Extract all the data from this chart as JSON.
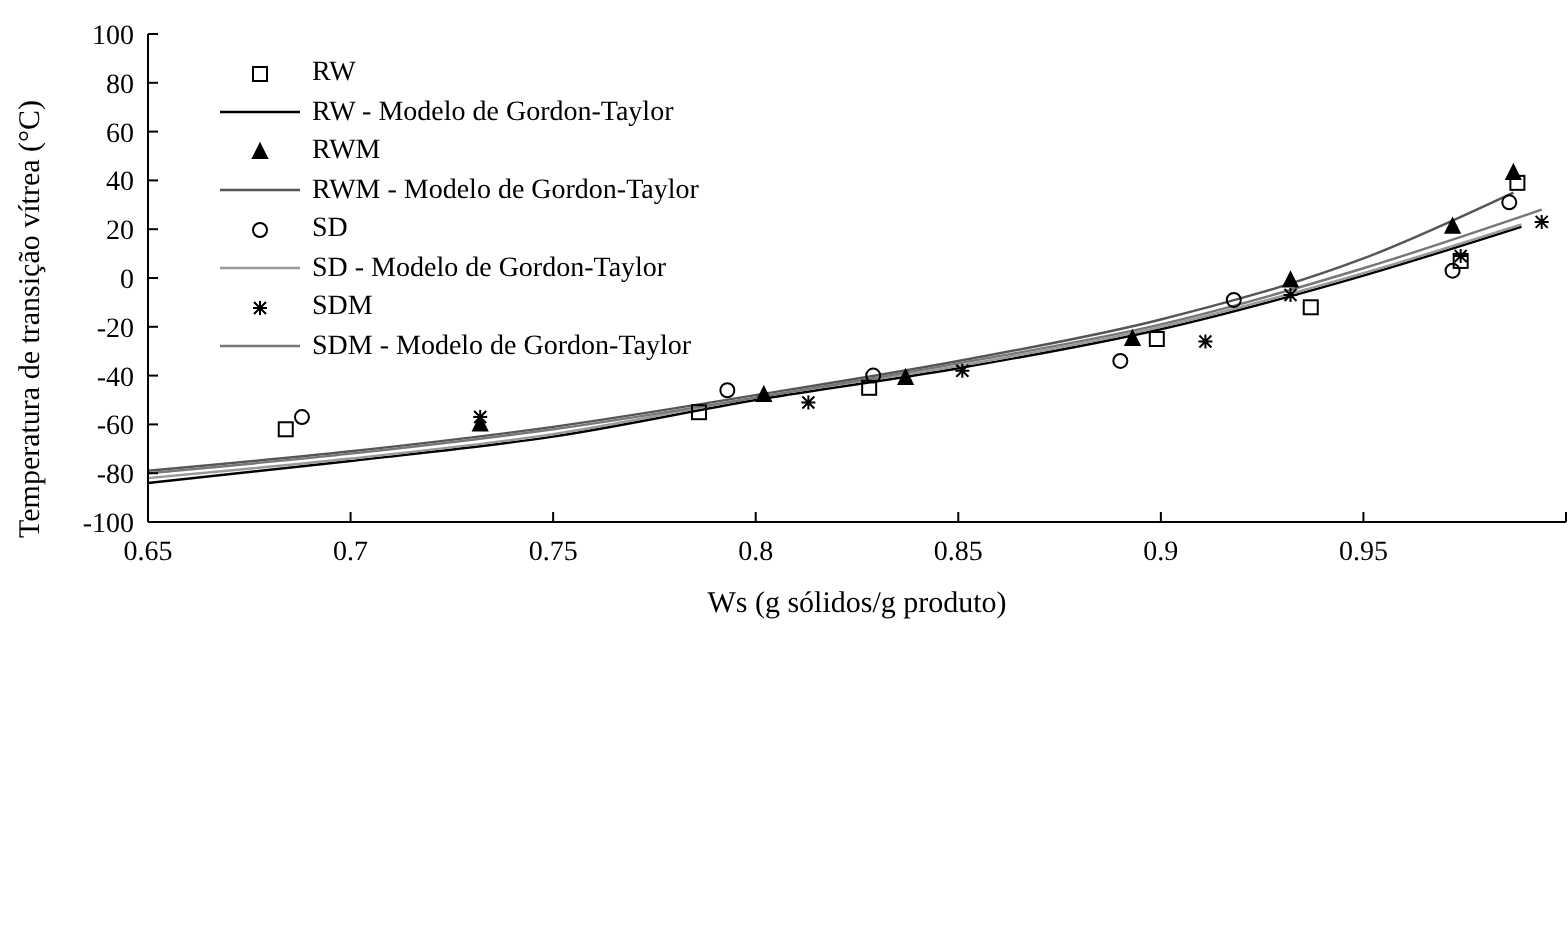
{
  "chart_data": {
    "type": "scatter",
    "xlabel": "Ws (g sólidos/g produto)",
    "ylabel": "Temperatura de transição vítrea (°C)",
    "xlim": [
      0.65,
      1.0
    ],
    "ylim": [
      -100,
      100
    ],
    "xticks": [
      0.65,
      0.7,
      0.75,
      0.8,
      0.85,
      0.9,
      0.95,
      {
        "value": 1.0,
        "label": null
      }
    ],
    "yticks": [
      -100,
      -80,
      -60,
      -40,
      -20,
      0,
      20,
      40,
      60,
      80,
      100
    ],
    "legend": "top left",
    "series": [
      {
        "name": "RW",
        "marker": "square",
        "color": "#000000",
        "x": [
          0.684,
          0.786,
          0.828,
          0.899,
          0.937,
          0.974,
          0.988
        ],
        "values": [
          -62,
          -55,
          -45,
          -25,
          -12,
          7,
          39
        ]
      },
      {
        "name": "RW - Modelo de Gordon-Taylor",
        "type": "line",
        "marker": "none",
        "color": "#000000",
        "x": [
          0.65,
          0.7,
          0.75,
          0.8,
          0.85,
          0.9,
          0.95,
          0.989
        ],
        "values": [
          -84,
          -75,
          -65,
          -50,
          -37,
          -21,
          1,
          21
        ]
      },
      {
        "name": "RWM",
        "marker": "triangle",
        "color": "#000000",
        "x": [
          0.732,
          0.802,
          0.837,
          0.893,
          0.932,
          0.972,
          0.987
        ],
        "values": [
          -60,
          -48,
          -41,
          -25,
          -1,
          21,
          43
        ]
      },
      {
        "name": "RWM - Modelo de Gordon-Taylor",
        "type": "line",
        "marker": "none",
        "color": "#555555",
        "x": [
          0.65,
          0.7,
          0.75,
          0.8,
          0.85,
          0.9,
          0.95,
          0.987
        ],
        "values": [
          -79,
          -71,
          -61,
          -48,
          -34,
          -17,
          8,
          35
        ]
      },
      {
        "name": "SD",
        "marker": "circle",
        "color": "#000000",
        "x": [
          0.688,
          0.793,
          0.829,
          0.89,
          0.918,
          0.972,
          0.986
        ],
        "values": [
          -57,
          -46,
          -40,
          -34,
          -9,
          3,
          31
        ]
      },
      {
        "name": "SD - Modelo de Gordon-Taylor",
        "type": "line",
        "marker": "none",
        "color": "#999999",
        "x": [
          0.65,
          0.7,
          0.75,
          0.8,
          0.85,
          0.9,
          0.95,
          0.989
        ],
        "values": [
          -82,
          -74,
          -64,
          -49,
          -36,
          -20,
          2,
          22
        ]
      },
      {
        "name": "SDM",
        "marker": "cross",
        "color": "#000000",
        "x": [
          0.732,
          0.813,
          0.851,
          0.911,
          0.932,
          0.974,
          0.994
        ],
        "values": [
          -57,
          -51,
          -38,
          -26,
          -7,
          9,
          23
        ]
      },
      {
        "name": "SDM - Modelo de Gordon-Taylor",
        "type": "line",
        "marker": "none",
        "color": "#777777",
        "x": [
          0.65,
          0.7,
          0.75,
          0.8,
          0.85,
          0.9,
          0.95,
          0.994
        ],
        "values": [
          -80,
          -72,
          -62,
          -49,
          -35,
          -19,
          4,
          28
        ]
      }
    ]
  }
}
